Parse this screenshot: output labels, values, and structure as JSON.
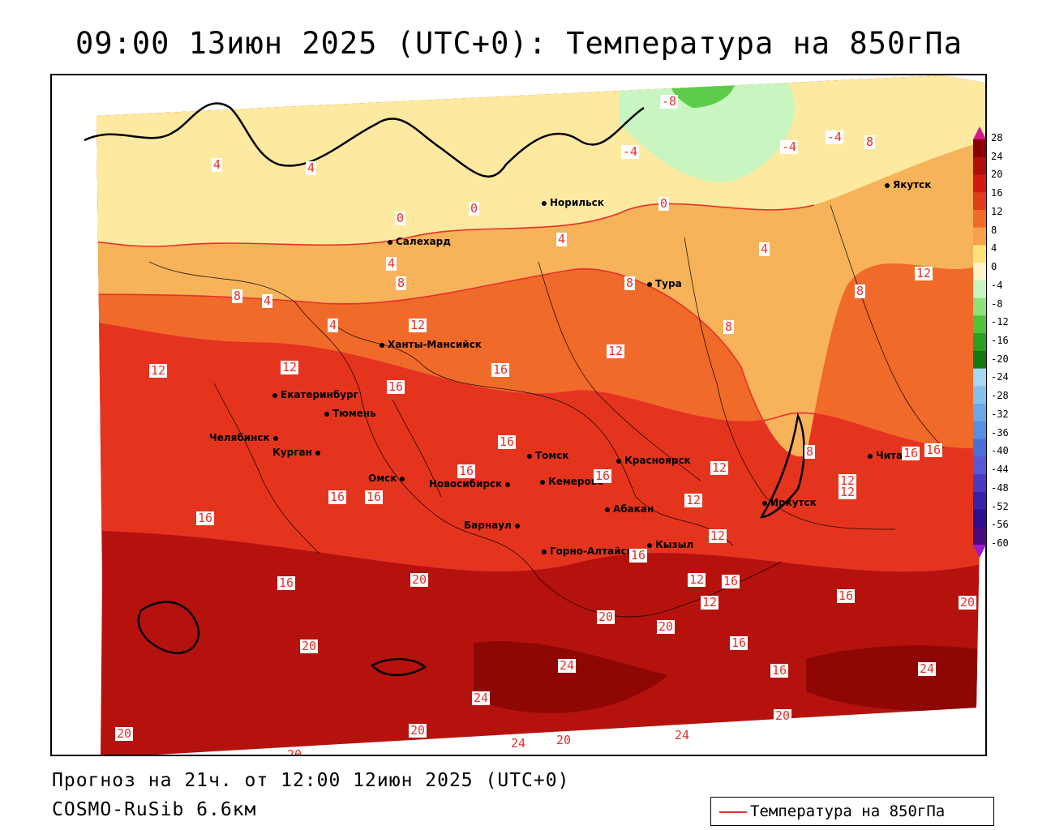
{
  "title": "09:00 13июн 2025 (UTC+0): Температура на 850гПа",
  "forecast_line": "Прогноз на 21ч. от 12:00 12июн 2025 (UTC+0)",
  "model_line": "COSMO-RuSib 6.6км",
  "legend_label": "Температура на 850гПа",
  "colors": {
    "isotherm_line": "#e8302a",
    "cold_green": "#5ecb4a",
    "pale_green": "#c8f5c0",
    "yellow": "#fde9a0",
    "light_orange": "#f7b35a",
    "orange": "#f06a2a",
    "red": "#e5341d",
    "dark_red": "#b5120e",
    "deep_red": "#8f0705"
  },
  "colorbar": {
    "labels": [
      "28",
      "24",
      "20",
      "16",
      "12",
      "8",
      "4",
      "0",
      "-4",
      "-8",
      "-12",
      "-16",
      "-20",
      "-24",
      "-28",
      "-32",
      "-36",
      "-40",
      "-44",
      "-48",
      "-52",
      "-56",
      "-60"
    ],
    "colors": [
      "#8a0000",
      "#b00d0d",
      "#d11a12",
      "#e33a1a",
      "#f06a2a",
      "#f7a24a",
      "#fde27a",
      "#fff5c8",
      "#c8f5c0",
      "#8de07a",
      "#4fc23a",
      "#2aa020",
      "#127a12",
      "#a8d8f0",
      "#88c0ec",
      "#6aa8e8",
      "#5890e0",
      "#4a70d8",
      "#5a58d0",
      "#4a3ac0",
      "#3a22a8",
      "#2c1090",
      "#4a0a80"
    ]
  },
  "cities": [
    {
      "name": "Норильск"
    },
    {
      "name": "Якутск"
    },
    {
      "name": "Салехард"
    },
    {
      "name": "Тура"
    },
    {
      "name": "Ханты-Мансийск"
    },
    {
      "name": "Екатеринбург"
    },
    {
      "name": "Тюмень"
    },
    {
      "name": "Челябинск"
    },
    {
      "name": "Курган"
    },
    {
      "name": "Омск"
    },
    {
      "name": "Новосибирск"
    },
    {
      "name": "Томск"
    },
    {
      "name": "Красноярск"
    },
    {
      "name": "Кемерово"
    },
    {
      "name": "Абакан"
    },
    {
      "name": "Барнаул"
    },
    {
      "name": "Горно-Алтайск"
    },
    {
      "name": "Кызыл"
    },
    {
      "name": "Иркутск"
    },
    {
      "name": "Чита"
    }
  ],
  "isotherm_labels": [
    "-8",
    "-4",
    "-4",
    "-4",
    "8",
    "4",
    "4",
    "0",
    "0",
    "4",
    "0",
    "4",
    "4",
    "8",
    "8",
    "12",
    "8",
    "8",
    "4",
    "4",
    "8",
    "12",
    "12",
    "12",
    "16",
    "16",
    "12",
    "16",
    "16",
    "16",
    "16",
    "16",
    "12",
    "12",
    "16",
    "16",
    "12",
    "12",
    "16",
    "16",
    "12",
    "12",
    "12",
    "16",
    "16",
    "20",
    "20",
    "20",
    "20",
    "20",
    "16",
    "20",
    "16",
    "24",
    "24",
    "24",
    "20",
    "20",
    "24",
    "20",
    "20",
    "16",
    "24",
    "20",
    "8"
  ]
}
